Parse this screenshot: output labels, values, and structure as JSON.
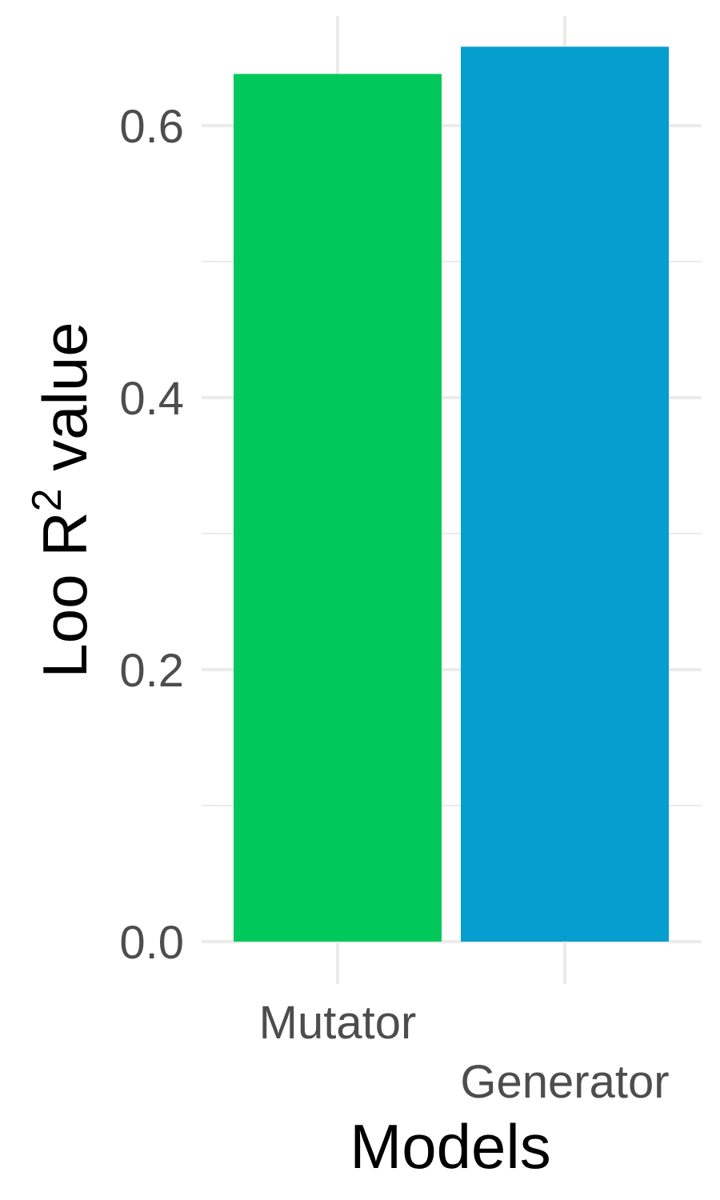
{
  "chart_data": {
    "type": "bar",
    "categories": [
      "Mutator",
      "Generator"
    ],
    "values": [
      0.638,
      0.658
    ],
    "colors": [
      "#00C85A",
      "#069DCF"
    ],
    "ylim": [
      -0.055,
      0.68
    ],
    "yticks": [
      0.0,
      0.2,
      0.4,
      0.6
    ],
    "ytick_labels": [
      "0.0",
      "0.2",
      "0.4",
      "0.6"
    ],
    "yminor": [
      0.1,
      0.3,
      0.5
    ],
    "grid": true,
    "grid_color": "#ebebeb",
    "xlabel": "Models",
    "ylabel": {
      "prefix": "Loo R",
      "superscript": "2",
      "suffix": " value"
    }
  }
}
